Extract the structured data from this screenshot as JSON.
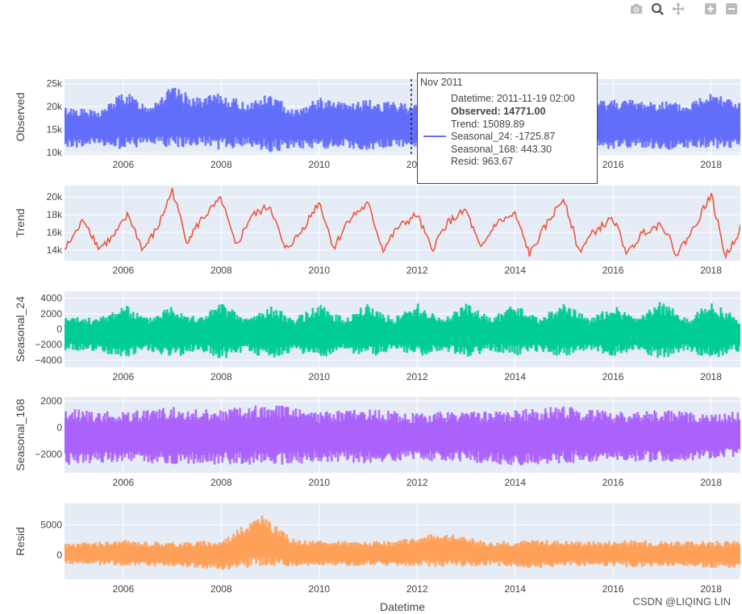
{
  "toolbar": {
    "buttons": [
      {
        "icon": "camera-icon",
        "name": "download-plot-button"
      },
      {
        "icon": "zoom-icon",
        "name": "zoom-button"
      },
      {
        "icon": "pan-icon",
        "name": "pan-button"
      },
      {
        "icon": "zoom-in-icon",
        "name": "zoom-in-button"
      },
      {
        "icon": "zoom-out-icon",
        "name": "zoom-out-button"
      }
    ]
  },
  "tooltip": {
    "title": "Nov 2011",
    "datetime": "Datetime: 2011-11-19 02:00",
    "observed": "Observed: 14771.00",
    "trend": "Trend: 15089.89",
    "seasonal_24": "Seasonal_24: -1725.87",
    "seasonal_168": "Seasonal_168: 443.30",
    "resid": "Resid: 963.67",
    "hover_x": 2011.88
  },
  "watermark": "CSDN @LIQING LIN",
  "chart_data": {
    "type": "line",
    "xlabel": "Datetime",
    "xlim": [
      2004.8,
      2018.6
    ],
    "xticks": [
      2006,
      2008,
      2010,
      2012,
      2014,
      2016,
      2018
    ],
    "grid": true,
    "panels": [
      {
        "name": "Observed",
        "ylabel": "Observed",
        "color": "#636efa",
        "ylim": [
          9500,
          26000
        ],
        "yticks": [
          10000,
          15000,
          20000,
          25000
        ],
        "yticklabels": [
          "10k",
          "15k",
          "20k",
          "25k"
        ],
        "kind": "band",
        "series": [
          {
            "x": 2005.0,
            "low": 11000,
            "high": 20000
          },
          {
            "x": 2005.5,
            "low": 11500,
            "high": 19000
          },
          {
            "x": 2006.0,
            "low": 10500,
            "high": 23500
          },
          {
            "x": 2006.5,
            "low": 11500,
            "high": 20500
          },
          {
            "x": 2007.0,
            "low": 10500,
            "high": 24500
          },
          {
            "x": 2007.5,
            "low": 11500,
            "high": 22000
          },
          {
            "x": 2008.0,
            "low": 10500,
            "high": 23000
          },
          {
            "x": 2008.5,
            "low": 11500,
            "high": 21000
          },
          {
            "x": 2009.0,
            "low": 10000,
            "high": 23000
          },
          {
            "x": 2009.5,
            "low": 11000,
            "high": 19500
          },
          {
            "x": 2010.0,
            "low": 10500,
            "high": 22000
          },
          {
            "x": 2010.5,
            "low": 11000,
            "high": 21000
          },
          {
            "x": 2011.0,
            "low": 10500,
            "high": 21500
          },
          {
            "x": 2011.5,
            "low": 11000,
            "high": 21000
          },
          {
            "x": 2012.0,
            "low": 10500,
            "high": 21000
          },
          {
            "x": 2012.5,
            "low": 11500,
            "high": 20000
          },
          {
            "x": 2013.0,
            "low": 10500,
            "high": 21500
          },
          {
            "x": 2013.5,
            "low": 11000,
            "high": 20000
          },
          {
            "x": 2014.0,
            "low": 10500,
            "high": 22500
          },
          {
            "x": 2014.5,
            "low": 11000,
            "high": 20000
          },
          {
            "x": 2015.0,
            "low": 10000,
            "high": 23000
          },
          {
            "x": 2015.5,
            "low": 11000,
            "high": 21000
          },
          {
            "x": 2016.0,
            "low": 10500,
            "high": 22000
          },
          {
            "x": 2016.5,
            "low": 11000,
            "high": 21500
          },
          {
            "x": 2017.0,
            "low": 10500,
            "high": 21500
          },
          {
            "x": 2017.5,
            "low": 11000,
            "high": 20500
          },
          {
            "x": 2018.0,
            "low": 10500,
            "high": 24000
          },
          {
            "x": 2018.6,
            "low": 11000,
            "high": 21000
          }
        ]
      },
      {
        "name": "Trend",
        "ylabel": "Trend",
        "color": "#ef553b",
        "ylim": [
          12800,
          21300
        ],
        "yticks": [
          14000,
          16000,
          18000,
          20000
        ],
        "yticklabels": [
          "14k",
          "16k",
          "18k",
          "20k"
        ],
        "kind": "line",
        "series": [
          {
            "x": 2004.8,
            "y": 14000
          },
          {
            "x": 2005.2,
            "y": 17500
          },
          {
            "x": 2005.5,
            "y": 14200
          },
          {
            "x": 2005.8,
            "y": 15500
          },
          {
            "x": 2006.1,
            "y": 18000
          },
          {
            "x": 2006.4,
            "y": 14000
          },
          {
            "x": 2006.7,
            "y": 16500
          },
          {
            "x": 2007.0,
            "y": 20800
          },
          {
            "x": 2007.3,
            "y": 15000
          },
          {
            "x": 2007.6,
            "y": 17500
          },
          {
            "x": 2008.0,
            "y": 19800
          },
          {
            "x": 2008.3,
            "y": 14300
          },
          {
            "x": 2008.6,
            "y": 17800
          },
          {
            "x": 2009.0,
            "y": 19000
          },
          {
            "x": 2009.3,
            "y": 14000
          },
          {
            "x": 2009.6,
            "y": 15800
          },
          {
            "x": 2010.0,
            "y": 19500
          },
          {
            "x": 2010.3,
            "y": 14200
          },
          {
            "x": 2010.6,
            "y": 17500
          },
          {
            "x": 2011.0,
            "y": 19200
          },
          {
            "x": 2011.3,
            "y": 14000
          },
          {
            "x": 2011.6,
            "y": 16500
          },
          {
            "x": 2012.0,
            "y": 18000
          },
          {
            "x": 2012.3,
            "y": 14000
          },
          {
            "x": 2012.6,
            "y": 17000
          },
          {
            "x": 2013.0,
            "y": 18500
          },
          {
            "x": 2013.3,
            "y": 14000
          },
          {
            "x": 2013.6,
            "y": 17000
          },
          {
            "x": 2014.0,
            "y": 18000
          },
          {
            "x": 2014.3,
            "y": 13500
          },
          {
            "x": 2014.6,
            "y": 16500
          },
          {
            "x": 2015.0,
            "y": 20000
          },
          {
            "x": 2015.3,
            "y": 13800
          },
          {
            "x": 2015.6,
            "y": 16000
          },
          {
            "x": 2016.0,
            "y": 17600
          },
          {
            "x": 2016.3,
            "y": 13500
          },
          {
            "x": 2016.6,
            "y": 16000
          },
          {
            "x": 2017.0,
            "y": 17000
          },
          {
            "x": 2017.3,
            "y": 13500
          },
          {
            "x": 2017.6,
            "y": 16000
          },
          {
            "x": 2018.0,
            "y": 20300
          },
          {
            "x": 2018.3,
            "y": 13200
          },
          {
            "x": 2018.6,
            "y": 16500
          }
        ]
      },
      {
        "name": "Seasonal_24",
        "ylabel": "Seasonal_24",
        "color": "#00cc96",
        "ylim": [
          -4900,
          4900
        ],
        "yticks": [
          -4000,
          -2000,
          0,
          2000,
          4000
        ],
        "yticklabels": [
          "−4000",
          "−2000",
          "0",
          "2000",
          "4000"
        ],
        "kind": "band",
        "series": [
          {
            "x": 2005.0,
            "low": -2800,
            "high": 1600
          },
          {
            "x": 2005.5,
            "low": -2900,
            "high": 1500
          },
          {
            "x": 2006.0,
            "low": -3800,
            "high": 3300
          },
          {
            "x": 2006.5,
            "low": -2800,
            "high": 1500
          },
          {
            "x": 2007.0,
            "low": -4000,
            "high": 3400
          },
          {
            "x": 2007.5,
            "low": -2800,
            "high": 1500
          },
          {
            "x": 2008.0,
            "low": -4000,
            "high": 3500
          },
          {
            "x": 2008.5,
            "low": -2800,
            "high": 1500
          },
          {
            "x": 2009.0,
            "low": -4200,
            "high": 3100
          },
          {
            "x": 2009.5,
            "low": -2800,
            "high": 1500
          },
          {
            "x": 2010.0,
            "low": -4000,
            "high": 3300
          },
          {
            "x": 2010.5,
            "low": -2800,
            "high": 1500
          },
          {
            "x": 2011.0,
            "low": -3800,
            "high": 3400
          },
          {
            "x": 2011.5,
            "low": -2800,
            "high": 1500
          },
          {
            "x": 2012.0,
            "low": -3600,
            "high": 3400
          },
          {
            "x": 2012.5,
            "low": -2800,
            "high": 1500
          },
          {
            "x": 2013.0,
            "low": -3800,
            "high": 3400
          },
          {
            "x": 2013.5,
            "low": -2800,
            "high": 1500
          },
          {
            "x": 2014.0,
            "low": -3600,
            "high": 3300
          },
          {
            "x": 2014.5,
            "low": -2800,
            "high": 1500
          },
          {
            "x": 2015.0,
            "low": -3800,
            "high": 3400
          },
          {
            "x": 2015.5,
            "low": -2800,
            "high": 1500
          },
          {
            "x": 2016.0,
            "low": -3600,
            "high": 3100
          },
          {
            "x": 2016.5,
            "low": -2800,
            "high": 1500
          },
          {
            "x": 2017.0,
            "low": -4000,
            "high": 3700
          },
          {
            "x": 2017.5,
            "low": -2800,
            "high": 1500
          },
          {
            "x": 2018.0,
            "low": -4000,
            "high": 3500
          },
          {
            "x": 2018.6,
            "low": -2800,
            "high": 1500
          }
        ]
      },
      {
        "name": "Seasonal_168",
        "ylabel": "Seasonal_168",
        "color": "#ab63fa",
        "ylim": [
          -3400,
          2300
        ],
        "yticks": [
          -2000,
          0,
          2000
        ],
        "yticklabels": [
          "−2000",
          "0",
          "2000"
        ],
        "kind": "band",
        "series": [
          {
            "x": 2005.0,
            "low": -2800,
            "high": 1400
          },
          {
            "x": 2006.0,
            "low": -2600,
            "high": 1200
          },
          {
            "x": 2007.0,
            "low": -2800,
            "high": 1600
          },
          {
            "x": 2008.0,
            "low": -2800,
            "high": 1400
          },
          {
            "x": 2009.0,
            "low": -2900,
            "high": 1800
          },
          {
            "x": 2010.0,
            "low": -2600,
            "high": 1200
          },
          {
            "x": 2011.0,
            "low": -2700,
            "high": 1400
          },
          {
            "x": 2012.0,
            "low": -2500,
            "high": 1100
          },
          {
            "x": 2013.0,
            "low": -2600,
            "high": 1300
          },
          {
            "x": 2014.0,
            "low": -2900,
            "high": 1400
          },
          {
            "x": 2015.0,
            "low": -2700,
            "high": 1600
          },
          {
            "x": 2016.0,
            "low": -2500,
            "high": 1200
          },
          {
            "x": 2017.0,
            "low": -2600,
            "high": 1300
          },
          {
            "x": 2018.0,
            "low": -2400,
            "high": 1100
          },
          {
            "x": 2018.6,
            "low": -2200,
            "high": 1200
          }
        ]
      },
      {
        "name": "Resid",
        "ylabel": "Resid",
        "color": "#ffa15a",
        "ylim": [
          -4000,
          8500
        ],
        "yticks": [
          0,
          5000
        ],
        "yticklabels": [
          "0",
          "5000"
        ],
        "kind": "band",
        "series": [
          {
            "x": 2005.0,
            "low": -1500,
            "high": 2000
          },
          {
            "x": 2006.0,
            "low": -1800,
            "high": 2500
          },
          {
            "x": 2007.0,
            "low": -2000,
            "high": 2200
          },
          {
            "x": 2008.0,
            "low": -2500,
            "high": 2500
          },
          {
            "x": 2008.8,
            "low": -1800,
            "high": 6700
          },
          {
            "x": 2009.5,
            "low": -2000,
            "high": 2500
          },
          {
            "x": 2010.5,
            "low": -1800,
            "high": 2300
          },
          {
            "x": 2011.5,
            "low": -1800,
            "high": 2300
          },
          {
            "x": 2012.5,
            "low": -2000,
            "high": 3800
          },
          {
            "x": 2013.5,
            "low": -1800,
            "high": 2200
          },
          {
            "x": 2014.5,
            "low": -2200,
            "high": 2600
          },
          {
            "x": 2015.5,
            "low": -1800,
            "high": 2300
          },
          {
            "x": 2016.5,
            "low": -2000,
            "high": 2500
          },
          {
            "x": 2017.5,
            "low": -2000,
            "high": 2300
          },
          {
            "x": 2018.6,
            "low": -2200,
            "high": 2400
          }
        ]
      }
    ]
  }
}
